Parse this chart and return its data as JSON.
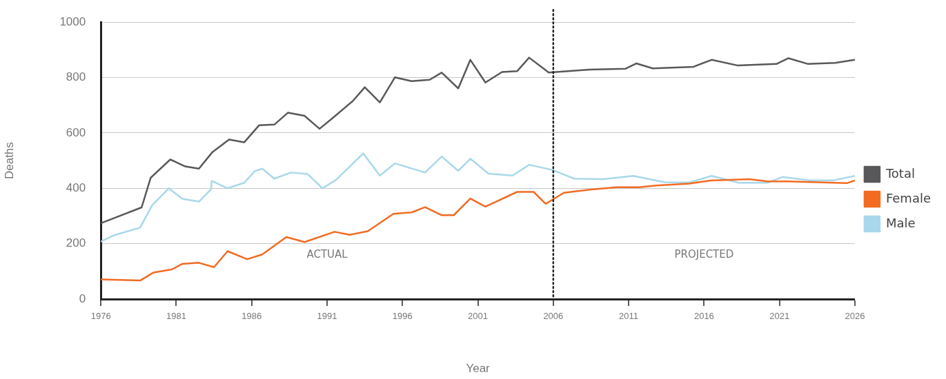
{
  "chart_data": {
    "type": "line",
    "xlabel": "Year",
    "ylabel": "Deaths",
    "xlim": [
      1976,
      2026
    ],
    "xticks": [
      1976,
      1981,
      1986,
      1991,
      1996,
      2001,
      2006,
      2011,
      2016,
      2021,
      2026
    ],
    "ylim": [
      0,
      1000
    ],
    "yticks": [
      0,
      200,
      400,
      600,
      800,
      1000
    ],
    "grid": "y",
    "legend": "right",
    "marker": "none",
    "line_style": "solid",
    "series": [
      {
        "name": "Total",
        "color": "#58585a",
        "x": [
          1976,
          1978.7,
          1979.3,
          1980.6,
          1981.6,
          1982.5,
          1983.4,
          1984.5,
          1985.5,
          1986.5,
          1987.5,
          1988.4,
          1989.5,
          1990.5,
          1991.4,
          1992.7,
          1993.5,
          1994.5,
          1995.5,
          1996.6,
          1997.8,
          1998.6,
          1999.7,
          2000.5,
          2001.5,
          2002.6,
          2003.6,
          2004.4,
          2005.7,
          2008.4,
          2010.8,
          2011.5,
          2012.6,
          2015.3,
          2016.5,
          2018.2,
          2020.8,
          2021.6,
          2022.9,
          2024.7,
          2026
        ],
        "values": [
          274,
          331,
          438,
          504,
          479,
          471,
          531,
          576,
          566,
          628,
          630,
          673,
          662,
          615,
          655,
          715,
          765,
          710,
          801,
          787,
          792,
          818,
          761,
          864,
          782,
          820,
          823,
          872,
          818,
          829,
          832,
          851,
          833,
          839,
          864,
          844,
          849,
          870,
          849,
          853,
          864
        ]
      },
      {
        "name": "Female",
        "color": "#f26b21",
        "x": [
          1976,
          1978.6,
          1979.5,
          1980.7,
          1981.4,
          1982.5,
          1983.5,
          1984.4,
          1985.7,
          1986.7,
          1988.3,
          1989.5,
          1991.5,
          1992.5,
          1993.7,
          1995.4,
          1996.6,
          1997.5,
          1998.6,
          1999.4,
          2000.5,
          2001.5,
          2003.6,
          2004.7,
          2005.5,
          2006.7,
          2008.4,
          2010.2,
          2011.7,
          2012.8,
          2015,
          2016.4,
          2019,
          2020.2,
          2021.6,
          2025.5,
          2026
        ],
        "values": [
          71,
          67,
          96,
          107,
          127,
          131,
          115,
          173,
          144,
          161,
          224,
          206,
          243,
          232,
          245,
          308,
          313,
          332,
          303,
          303,
          363,
          334,
          387,
          387,
          344,
          384,
          395,
          404,
          404,
          410,
          417,
          428,
          433,
          425,
          425,
          419,
          428
        ]
      },
      {
        "name": "Male",
        "color": "#a8d8ea",
        "x": [
          1976,
          1976.9,
          1978.6,
          1979.4,
          1980.5,
          1981.4,
          1982.5,
          1983.3,
          1983.35,
          1984.4,
          1985.5,
          1986.2,
          1986.7,
          1987.5,
          1988.6,
          1989.7,
          1990.7,
          1991.6,
          1993.4,
          1994.5,
          1995.5,
          1997.5,
          1998.6,
          1999.7,
          2000.5,
          2001.7,
          2003.3,
          2004.4,
          2005.9,
          2007.4,
          2009.3,
          2011.3,
          2013.4,
          2015,
          2016.5,
          2018.3,
          2020.2,
          2021.2,
          2022.9,
          2024.6,
          2026
        ],
        "values": [
          208,
          231,
          258,
          339,
          400,
          362,
          352,
          396,
          427,
          400,
          420,
          462,
          471,
          435,
          457,
          452,
          400,
          431,
          526,
          446,
          490,
          457,
          515,
          463,
          507,
          453,
          446,
          485,
          467,
          435,
          433,
          445,
          422,
          421,
          445,
          420,
          420,
          441,
          429,
          429,
          445
        ]
      }
    ],
    "ref_lines": [
      {
        "axis": "x",
        "value": 2006,
        "color": "#222222",
        "line_style": "dotted"
      }
    ],
    "annotations": [
      "ACTUAL",
      "PROJECTED"
    ]
  }
}
